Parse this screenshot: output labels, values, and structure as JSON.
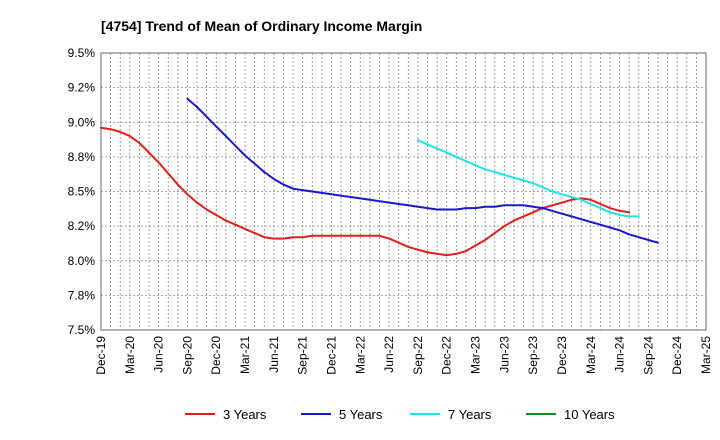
{
  "chart_data": {
    "type": "line",
    "title": "[4754]  Trend of Mean of Ordinary Income Margin",
    "xlabel": "",
    "ylabel": "",
    "x_tick_labels": [
      "Dec-19",
      "Mar-20",
      "Jun-20",
      "Sep-20",
      "Dec-20",
      "Mar-21",
      "Jun-21",
      "Sep-21",
      "Dec-21",
      "Mar-22",
      "Jun-22",
      "Sep-22",
      "Dec-22",
      "Mar-23",
      "Jun-23",
      "Sep-23",
      "Dec-23",
      "Mar-24",
      "Jun-24",
      "Sep-24",
      "Dec-24",
      "Mar-25"
    ],
    "y_tick_labels": [
      "7.5%",
      "7.8%",
      "8.0%",
      "8.2%",
      "8.5%",
      "8.8%",
      "9.0%",
      "9.2%",
      "9.5%"
    ],
    "ylim": [
      7.5,
      9.5
    ],
    "grid": true,
    "legend_position": "bottom",
    "series": [
      {
        "name": "3 Years",
        "color": "#e0201a",
        "start_index": 0,
        "values": [
          8.96,
          8.95,
          8.93,
          8.9,
          8.85,
          8.78,
          8.71,
          8.63,
          8.55,
          8.48,
          8.42,
          8.37,
          8.33,
          8.29,
          8.26,
          8.23,
          8.2,
          8.17,
          8.16,
          8.16,
          8.17,
          8.17,
          8.18,
          8.18,
          8.18,
          8.18,
          8.18,
          8.18,
          8.18,
          8.18,
          8.16,
          8.13,
          8.1,
          8.08,
          8.06,
          8.05,
          8.04,
          8.05,
          8.07,
          8.11,
          8.15,
          8.2,
          8.25,
          8.29,
          8.32,
          8.35,
          8.38,
          8.4,
          8.42,
          8.44,
          8.45,
          8.44,
          8.41,
          8.38,
          8.36,
          8.35
        ]
      },
      {
        "name": "5 Years",
        "color": "#1a1acc",
        "start_index": 9,
        "values": [
          9.17,
          9.11,
          9.04,
          8.97,
          8.9,
          8.83,
          8.76,
          8.7,
          8.64,
          8.59,
          8.55,
          8.52,
          8.51,
          8.5,
          8.49,
          8.48,
          8.47,
          8.46,
          8.45,
          8.44,
          8.43,
          8.42,
          8.41,
          8.4,
          8.39,
          8.38,
          8.37,
          8.37,
          8.37,
          8.38,
          8.38,
          8.39,
          8.39,
          8.4,
          8.4,
          8.4,
          8.39,
          8.38,
          8.36,
          8.34,
          8.32,
          8.3,
          8.28,
          8.26,
          8.24,
          8.22,
          8.19,
          8.17,
          8.15,
          8.13
        ]
      },
      {
        "name": "7 Years",
        "color": "#19e6e6",
        "start_index": 33,
        "values": [
          8.87,
          8.84,
          8.81,
          8.78,
          8.75,
          8.72,
          8.69,
          8.66,
          8.64,
          8.62,
          8.6,
          8.58,
          8.56,
          8.53,
          8.5,
          8.48,
          8.46,
          8.44,
          8.41,
          8.38,
          8.35,
          8.33,
          8.32,
          8.32
        ]
      },
      {
        "name": "10 Years",
        "color": "#1a8c1a",
        "start_index": 0,
        "values": []
      }
    ]
  }
}
